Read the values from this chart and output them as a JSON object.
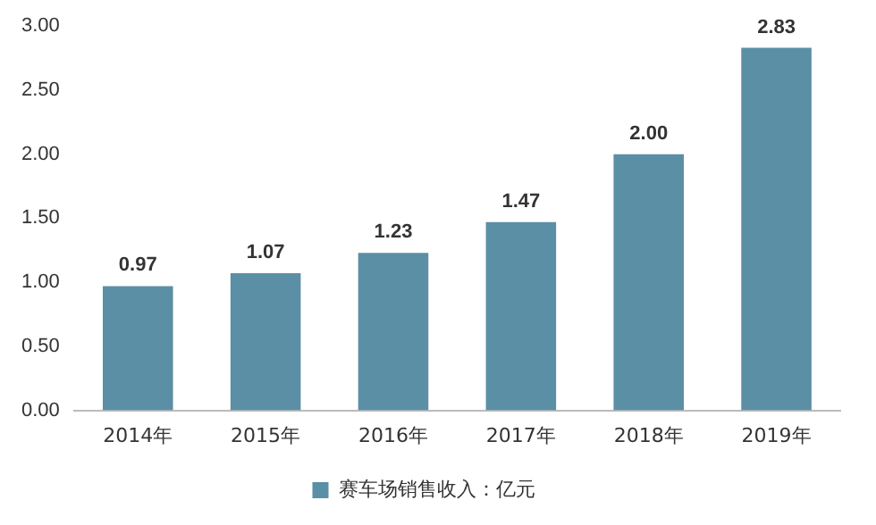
{
  "chart_data": {
    "type": "bar",
    "categories": [
      "2014年",
      "2015年",
      "2016年",
      "2017年",
      "2018年",
      "2019年"
    ],
    "series": [
      {
        "name": "赛车场销售收入：亿元",
        "color": "#5b8fa5",
        "values": [
          0.97,
          1.07,
          1.23,
          1.47,
          2.0,
          2.83
        ],
        "value_labels": [
          "0.97",
          "1.07",
          "1.23",
          "1.47",
          "2.00",
          "2.83"
        ]
      }
    ],
    "ylim": [
      0,
      3
    ],
    "yticks": [
      {
        "value": 0,
        "label": "0.00"
      },
      {
        "value": 0.5,
        "label": "0.50"
      },
      {
        "value": 1,
        "label": "1.00"
      },
      {
        "value": 1.5,
        "label": "1.50"
      },
      {
        "value": 2,
        "label": "2.00"
      },
      {
        "value": 2.5,
        "label": "2.50"
      },
      {
        "value": 3,
        "label": "3.00"
      }
    ],
    "grid": false,
    "legend": "bottom"
  }
}
